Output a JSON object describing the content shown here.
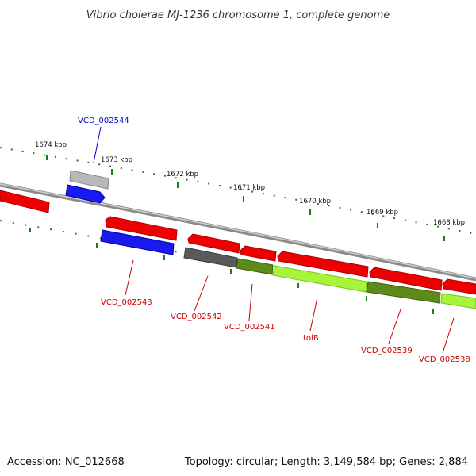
{
  "title": "Vibrio cholerae MJ-1236 chromosome 1, complete genome",
  "footer": {
    "accession": "Accession: NC_012668",
    "summary": "Topology: circular; Length: 3,149,584 bp; Genes: 2,884"
  },
  "colors": {
    "backbone": "#8a8a8a",
    "tick_marks": "#1f7a1f",
    "label_red": "#cc0000",
    "label_blue": "#0000cc",
    "gene_red": "#ee0000",
    "gene_blue": "#1a1aee",
    "gene_gray": "#5a5a5a",
    "gene_lightgray": "#b8b8b8",
    "gene_olive": "#5e8a1a",
    "gene_lime": "#a6f53a"
  },
  "scale_ticks": [
    "1674 kbp",
    "1673 kbp",
    "1672 kbp",
    "1671 kbp",
    "1670 kbp",
    "1669 kbp",
    "1668 kbp"
  ],
  "gene_labels": [
    {
      "text": "VCD_002544",
      "color": "blue"
    },
    {
      "text": "VCD_002543",
      "color": "red"
    },
    {
      "text": "VCD_002542",
      "color": "red"
    },
    {
      "text": "VCD_002541",
      "color": "red"
    },
    {
      "text": "tolB",
      "color": "red"
    },
    {
      "text": "VCD_002539",
      "color": "red"
    },
    {
      "text": "VCD_002538",
      "color": "red"
    }
  ]
}
